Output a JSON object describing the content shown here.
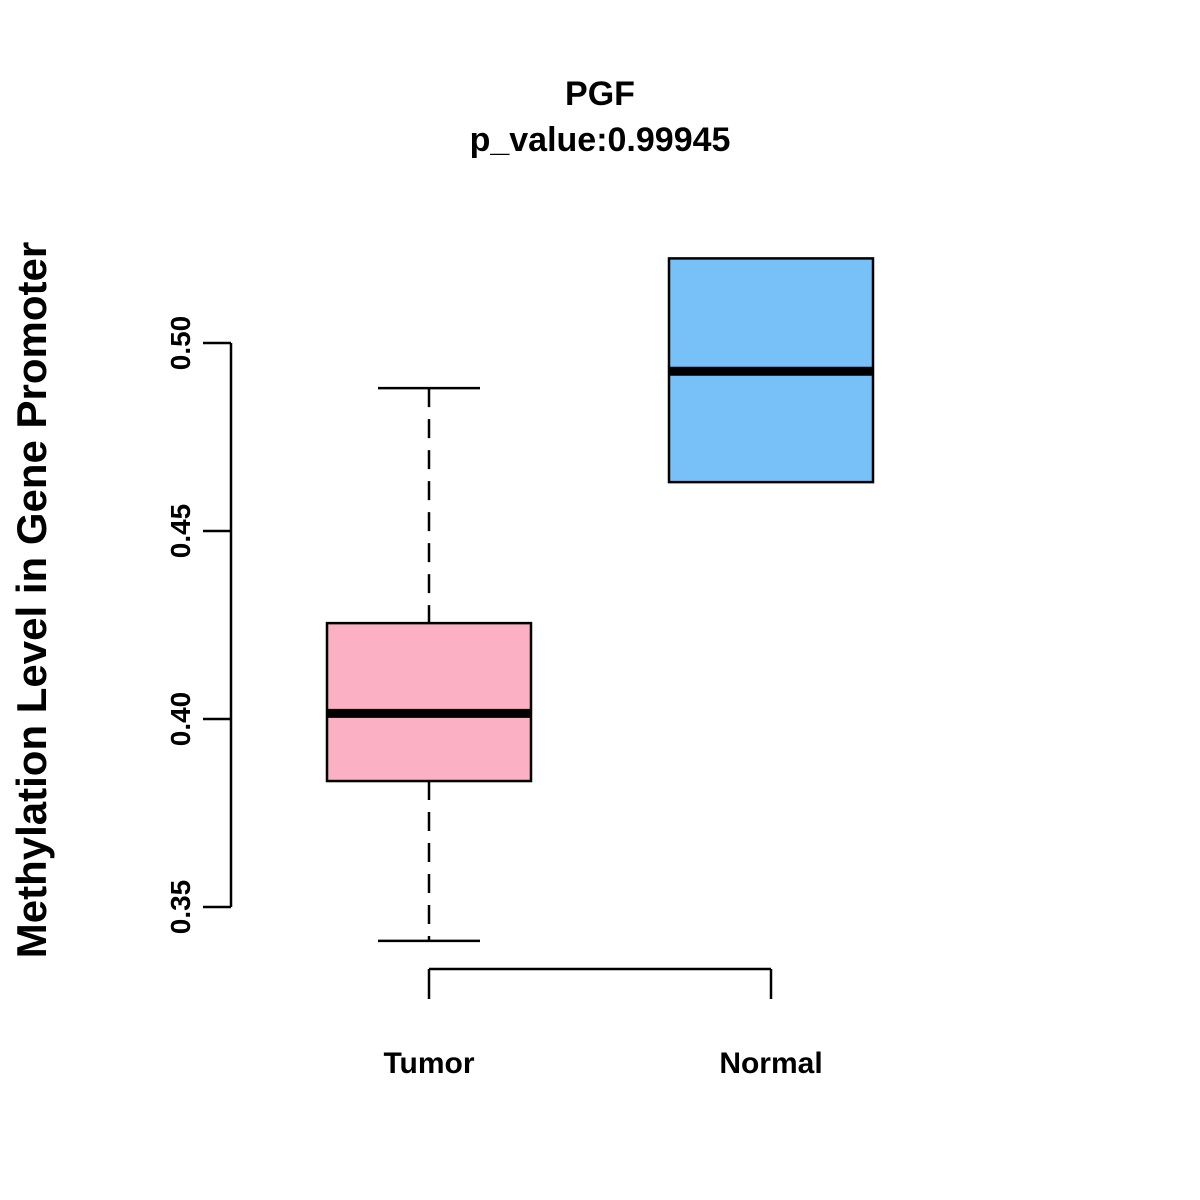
{
  "chart_data": {
    "type": "boxplot",
    "title": "PGF",
    "subtitle": "p_value:0.99945",
    "xlabel": "",
    "ylabel": "Methylation Level in Gene Promoter",
    "ylim": [
      0.35,
      0.5
    ],
    "yticks": [
      0.35,
      0.4,
      0.45,
      0.5
    ],
    "ytick_labels": [
      "0.35",
      "0.40",
      "0.45",
      "0.50"
    ],
    "categories": [
      "Tumor",
      "Normal"
    ],
    "series": [
      {
        "name": "Tumor",
        "min": 0.341,
        "q1": 0.3835,
        "median": 0.4015,
        "q3": 0.4255,
        "max": 0.488,
        "color": "#FBB0C3"
      },
      {
        "name": "Normal",
        "min": 0.463,
        "q1": 0.463,
        "median": 0.4925,
        "q3": 0.5225,
        "max": 0.5225,
        "color": "#78C1F8"
      }
    ]
  }
}
